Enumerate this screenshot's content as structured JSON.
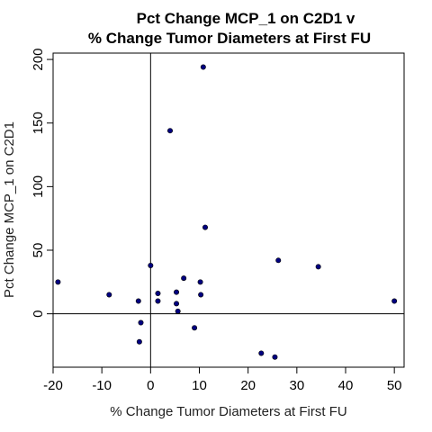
{
  "chart_data": {
    "type": "scatter",
    "title_lines": [
      "Pct Change MCP_1 on C2D1 v",
      "% Change Tumor Diameters at First FU"
    ],
    "xlabel": "% Change Tumor Diameters at First FU",
    "ylabel": "Pct Change MCP_1 on C2D1",
    "xlim": [
      -20,
      52
    ],
    "ylim": [
      -42,
      205
    ],
    "x_ticks": [
      -20,
      -10,
      0,
      10,
      20,
      30,
      40,
      50
    ],
    "y_ticks": [
      0,
      50,
      100,
      150,
      200
    ],
    "reference_lines": {
      "x": 0,
      "y": 0
    },
    "grid": false,
    "point_color": "#000080",
    "points": [
      {
        "x": -19,
        "y": 25
      },
      {
        "x": -8.5,
        "y": 15
      },
      {
        "x": -2.5,
        "y": 10
      },
      {
        "x": -2,
        "y": -7
      },
      {
        "x": -2.3,
        "y": -22
      },
      {
        "x": 0,
        "y": 38
      },
      {
        "x": 1.5,
        "y": 16
      },
      {
        "x": 1.5,
        "y": 10
      },
      {
        "x": 4,
        "y": 144
      },
      {
        "x": 5.3,
        "y": 17
      },
      {
        "x": 5.3,
        "y": 8
      },
      {
        "x": 5.6,
        "y": 2
      },
      {
        "x": 6.8,
        "y": 28
      },
      {
        "x": 9,
        "y": -11
      },
      {
        "x": 10.2,
        "y": 25
      },
      {
        "x": 10.3,
        "y": 15
      },
      {
        "x": 10.8,
        "y": 194
      },
      {
        "x": 11.2,
        "y": 68
      },
      {
        "x": 22.7,
        "y": -31
      },
      {
        "x": 25.5,
        "y": -34
      },
      {
        "x": 26.2,
        "y": 42
      },
      {
        "x": 34.4,
        "y": 37
      },
      {
        "x": 50,
        "y": 10
      }
    ]
  }
}
